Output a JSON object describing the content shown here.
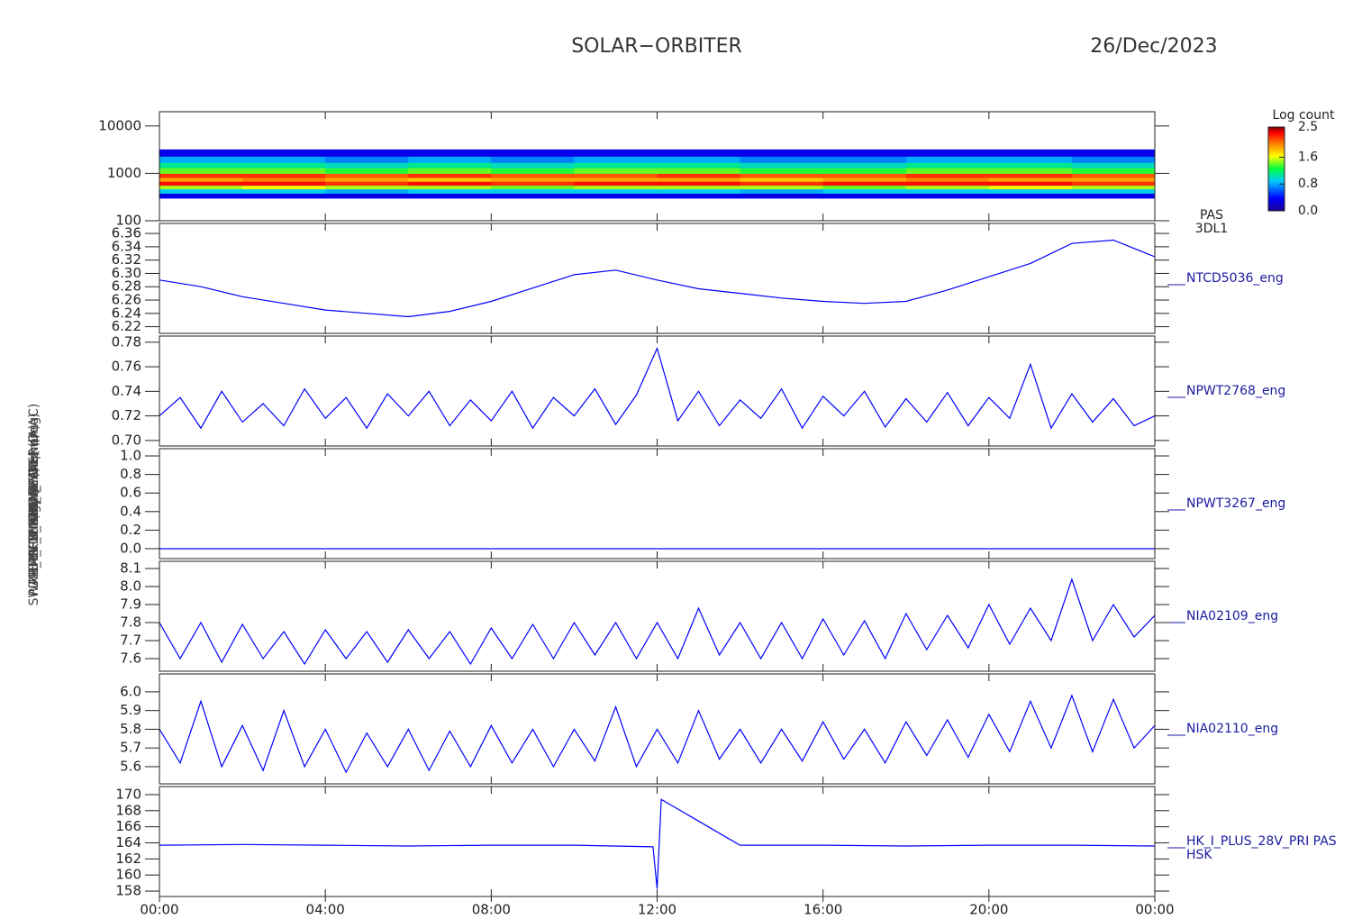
{
  "title": "SOLAR−ORBITER",
  "date": "26/Dec/2023",
  "chart_data": [
    {
      "type": "heatmap",
      "name": "PAS",
      "source": "3DL1",
      "ylabel": "Energy (eV)",
      "log_y": true,
      "xlim": [
        0,
        24
      ],
      "ylim": [
        100,
        20000
      ],
      "yticks": [
        100,
        1000,
        10000
      ],
      "x": [
        0,
        2,
        4,
        6,
        8,
        10,
        12,
        14,
        16,
        18,
        20,
        22,
        24
      ],
      "y": [
        300,
        380,
        470,
        560,
        680,
        820,
        1000,
        1300,
        1700,
        2300,
        3200
      ],
      "z": [
        [
          0.3,
          0.3,
          0.3,
          0.3,
          0.3,
          0.3,
          0.3,
          0.3,
          0.3,
          0.3,
          0.3,
          0.3
        ],
        [
          0.9,
          0.9,
          0.8,
          0.9,
          0.9,
          0.9,
          0.9,
          0.8,
          0.9,
          0.9,
          0.9,
          0.9
        ],
        [
          1.5,
          1.6,
          1.5,
          1.5,
          1.4,
          1.5,
          1.5,
          1.5,
          1.4,
          1.5,
          1.6,
          1.5
        ],
        [
          2.3,
          2.3,
          2.2,
          2.3,
          2.2,
          2.3,
          2.3,
          2.2,
          2.3,
          2.3,
          2.3,
          2.2
        ],
        [
          1.9,
          2.0,
          1.9,
          1.8,
          1.9,
          1.9,
          1.9,
          1.8,
          1.9,
          2.0,
          1.9,
          1.9
        ],
        [
          2.2,
          2.2,
          2.1,
          2.2,
          2.1,
          2.1,
          2.2,
          2.1,
          2.1,
          2.2,
          2.2,
          2.1
        ],
        [
          1.4,
          1.4,
          1.3,
          1.4,
          1.3,
          1.4,
          1.4,
          1.3,
          1.3,
          1.4,
          1.4,
          1.3
        ],
        [
          1.1,
          1.1,
          1.0,
          1.1,
          1.0,
          1.1,
          1.1,
          1.0,
          1.0,
          1.1,
          1.1,
          1.0
        ],
        [
          0.8,
          0.8,
          0.7,
          0.8,
          0.7,
          0.8,
          0.8,
          0.7,
          0.7,
          0.8,
          0.8,
          0.7
        ],
        [
          0.3,
          0.3,
          0.3,
          0.3,
          0.3,
          0.3,
          0.3,
          0.3,
          0.3,
          0.3,
          0.3,
          0.3
        ]
      ],
      "colorbar": {
        "label": "Log count",
        "lim": [
          0,
          2.5
        ],
        "ticks": [
          {
            "value": 0,
            "label": "0.0"
          },
          {
            "value": 0.8,
            "label": "0.8"
          },
          {
            "value": 1.6,
            "label": "1.6"
          },
          {
            "value": 2.5,
            "label": "2.5"
          }
        ]
      }
    },
    {
      "type": "line",
      "ylabel": "SWA-EAS CCD Apx Temp (DegC)",
      "xlim": [
        0,
        24
      ],
      "ylim": [
        6.21,
        6.375
      ],
      "yticks": [
        6.22,
        6.24,
        6.26,
        6.28,
        {
          "value": 6.3,
          "label": "6.30"
        },
        6.32,
        6.34,
        6.36
      ],
      "x": [
        0,
        1,
        2,
        3,
        4,
        5,
        6,
        7,
        8,
        9,
        10,
        11,
        12,
        13,
        14,
        15,
        16,
        17,
        18,
        19,
        20,
        21,
        22,
        23,
        24
      ],
      "series": [
        {
          "name": "NTCD5036_eng",
          "color": "#0000ff",
          "values": [
            6.29,
            6.28,
            6.265,
            6.255,
            6.245,
            6.24,
            6.235,
            6.243,
            6.258,
            6.278,
            6.298,
            6.305,
            6.29,
            6.277,
            6.27,
            6.263,
            6.258,
            6.255,
            6.258,
            6.275,
            6.295,
            6.315,
            6.345,
            6.35,
            6.325
          ]
        }
      ]
    },
    {
      "type": "line",
      "ylabel": "RPW THERMAL (Mone)",
      "xlim": [
        0,
        24
      ],
      "ylim": [
        0.6955,
        0.785
      ],
      "yticks": [
        {
          "value": 0.7,
          "label": "0.70"
        },
        0.72,
        0.74,
        0.76,
        0.78
      ],
      "x": [
        0,
        0.5,
        1,
        1.5,
        2,
        2.5,
        3,
        3.5,
        4,
        4.5,
        5,
        5.5,
        6,
        6.5,
        7,
        7.5,
        8,
        8.5,
        9,
        9.5,
        10,
        10.5,
        11,
        11.5,
        12,
        12.5,
        13,
        13.5,
        14,
        14.5,
        15,
        15.5,
        16,
        16.5,
        17,
        17.5,
        18,
        18.5,
        19,
        19.5,
        20,
        20.5,
        21,
        21.5,
        22,
        22.5,
        23,
        23.5,
        24
      ],
      "series": [
        {
          "name": "NPWT2768_eng",
          "color": "#0000ff",
          "values": [
            0.72,
            0.735,
            0.71,
            0.74,
            0.715,
            0.73,
            0.712,
            0.742,
            0.718,
            0.735,
            0.71,
            0.738,
            0.72,
            0.74,
            0.712,
            0.733,
            0.716,
            0.74,
            0.71,
            0.735,
            0.72,
            0.742,
            0.713,
            0.737,
            0.775,
            0.716,
            0.74,
            0.712,
            0.733,
            0.718,
            0.742,
            0.71,
            0.736,
            0.72,
            0.74,
            0.711,
            0.734,
            0.715,
            0.739,
            0.712,
            0.735,
            0.718,
            0.762,
            0.71,
            0.738,
            0.715,
            0.734,
            0.712,
            0.72
          ]
        }
      ]
    },
    {
      "type": "line",
      "ylabel": "RPW ANT (Mone)",
      "xlim": [
        0,
        24
      ],
      "ylim": [
        -0.107,
        1.078
      ],
      "yticks": [
        {
          "value": 0,
          "label": "0.0"
        },
        0.2,
        0.4,
        0.6,
        0.8,
        {
          "value": 1,
          "label": "1.0"
        }
      ],
      "x": [
        0,
        24
      ],
      "series": [
        {
          "name": "NPWT3267_eng",
          "color": "#0000ff",
          "values": [
            0,
            0
          ]
        }
      ]
    },
    {
      "type": "line",
      "ylabel": "PDM_HK_IMON_HEATER (mA)",
      "xlim": [
        0,
        24
      ],
      "ylim": [
        7.53,
        8.14
      ],
      "yticks": [
        7.6,
        7.7,
        7.8,
        7.9,
        {
          "value": 8,
          "label": "8.0"
        },
        8.1
      ],
      "x": [
        0,
        0.5,
        1,
        1.5,
        2,
        2.5,
        3,
        3.5,
        4,
        4.5,
        5,
        5.5,
        6,
        6.5,
        7,
        7.5,
        8,
        8.5,
        9,
        9.5,
        10,
        10.5,
        11,
        11.5,
        12,
        12.5,
        13,
        13.5,
        14,
        14.5,
        15,
        15.5,
        16,
        16.5,
        17,
        17.5,
        18,
        18.5,
        19,
        19.5,
        20,
        20.5,
        21,
        21.5,
        22,
        22.5,
        23,
        23.5,
        24
      ],
      "series": [
        {
          "name": "NIA02109_eng",
          "color": "#0000ff",
          "values": [
            7.8,
            7.6,
            7.8,
            7.58,
            7.79,
            7.6,
            7.75,
            7.57,
            7.76,
            7.6,
            7.75,
            7.58,
            7.76,
            7.6,
            7.75,
            7.57,
            7.77,
            7.6,
            7.79,
            7.6,
            7.8,
            7.62,
            7.8,
            7.6,
            7.8,
            7.6,
            7.88,
            7.62,
            7.8,
            7.6,
            7.8,
            7.6,
            7.82,
            7.62,
            7.81,
            7.6,
            7.85,
            7.65,
            7.84,
            7.66,
            7.9,
            7.68,
            7.88,
            7.7,
            8.04,
            7.7,
            7.9,
            7.72,
            7.84
          ]
        }
      ]
    },
    {
      "type": "line",
      "ylabel": "PDM_HK_IMON_PDU (mA)",
      "xlim": [
        0,
        24
      ],
      "ylim": [
        5.508,
        6.096
      ],
      "yticks": [
        5.6,
        5.7,
        5.8,
        5.9,
        {
          "value": 6,
          "label": "6.0"
        }
      ],
      "x": [
        0,
        0.5,
        1,
        1.5,
        2,
        2.5,
        3,
        3.5,
        4,
        4.5,
        5,
        5.5,
        6,
        6.5,
        7,
        7.5,
        8,
        8.5,
        9,
        9.5,
        10,
        10.5,
        11,
        11.5,
        12,
        12.5,
        13,
        13.5,
        14,
        14.5,
        15,
        15.5,
        16,
        16.5,
        17,
        17.5,
        18,
        18.5,
        19,
        19.5,
        20,
        20.5,
        21,
        21.5,
        22,
        22.5,
        23,
        23.5,
        24
      ],
      "series": [
        {
          "name": "NIA02110_eng",
          "color": "#0000ff",
          "values": [
            5.8,
            5.62,
            5.95,
            5.6,
            5.82,
            5.58,
            5.9,
            5.6,
            5.8,
            5.57,
            5.78,
            5.6,
            5.8,
            5.58,
            5.79,
            5.6,
            5.82,
            5.62,
            5.8,
            5.6,
            5.8,
            5.63,
            5.92,
            5.6,
            5.8,
            5.62,
            5.9,
            5.64,
            5.8,
            5.62,
            5.8,
            5.63,
            5.84,
            5.64,
            5.8,
            5.62,
            5.84,
            5.66,
            5.85,
            5.65,
            5.88,
            5.68,
            5.95,
            5.7,
            5.98,
            5.68,
            5.96,
            5.7,
            5.82
          ]
        }
      ]
    },
    {
      "type": "line",
      "ylabel": "(mA)",
      "source": "HSK",
      "xlim": [
        0,
        24
      ],
      "ylim": [
        157.33,
        171
      ],
      "yticks": [
        158,
        160,
        162,
        164,
        166,
        168,
        170
      ],
      "xticks": [
        {
          "value": 0,
          "label": "00:00"
        },
        {
          "value": 4,
          "label": "04:00"
        },
        {
          "value": 8,
          "label": "08:00"
        },
        {
          "value": 12,
          "label": "12:00"
        },
        {
          "value": 16,
          "label": "16:00"
        },
        {
          "value": 20,
          "label": "20:00"
        },
        {
          "value": 24,
          "label": "00:00"
        }
      ],
      "x": [
        0,
        2,
        4,
        6,
        8,
        10,
        11.9,
        12,
        12.1,
        14,
        16,
        18,
        20,
        22,
        24
      ],
      "series": [
        {
          "name": "HK_I_PLUS_28V_PRI PAS",
          "color": "#0000ff",
          "values": [
            163.7,
            163.8,
            163.7,
            163.6,
            163.7,
            163.7,
            163.5,
            158.3,
            169.4,
            163.7,
            163.7,
            163.6,
            163.7,
            163.7,
            163.6
          ]
        }
      ]
    }
  ]
}
